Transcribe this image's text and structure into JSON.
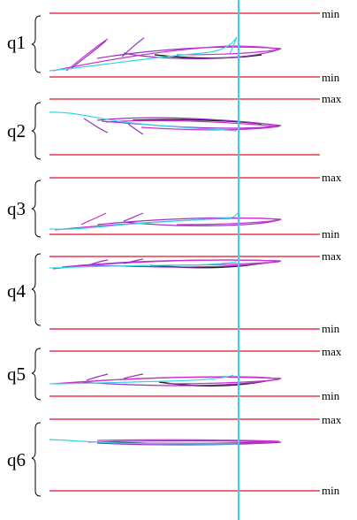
{
  "figure": {
    "background": "#ffffff",
    "colors": {
      "limit_line": "#e0102a",
      "cursor_line": "#33d6e6",
      "trace_purple": "#9a2fc9",
      "trace_magenta": "#cc33cc",
      "trace_cyan": "#33d6e6",
      "trace_black": "#202020",
      "brace": "#000000"
    },
    "panels": [
      {
        "label": "q1",
        "top_label": "min",
        "bottom_label": "min",
        "brace_icon": "curly-brace-icon"
      },
      {
        "label": "q2",
        "top_label": "max",
        "bottom_label": "",
        "brace_icon": "curly-brace-icon"
      },
      {
        "label": "q3",
        "top_label": "max",
        "bottom_label": "min",
        "brace_icon": "curly-brace-icon"
      },
      {
        "label": "q4",
        "top_label": "max",
        "bottom_label": "min",
        "brace_icon": "curly-brace-icon"
      },
      {
        "label": "q5",
        "top_label": "max",
        "bottom_label": "min",
        "brace_icon": "curly-brace-icon"
      },
      {
        "label": "q6",
        "top_label": "max",
        "bottom_label": "min",
        "brace_icon": "curly-brace-icon"
      }
    ]
  }
}
